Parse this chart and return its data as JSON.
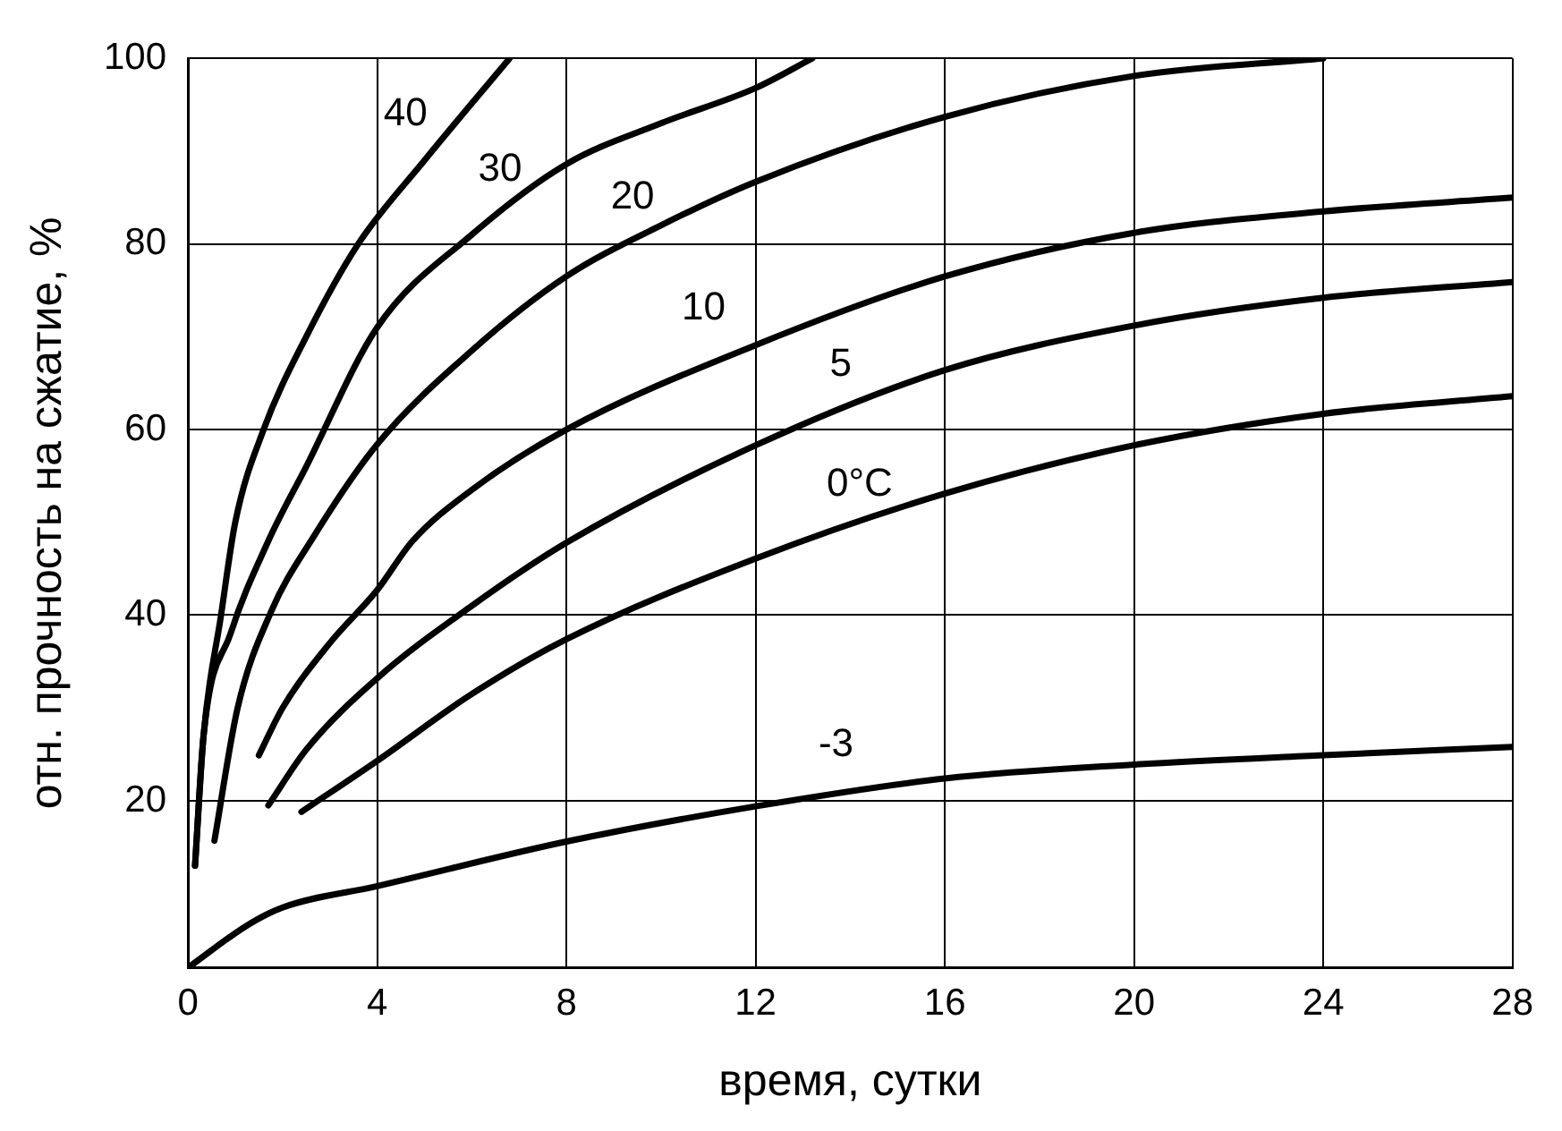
{
  "chart_data": {
    "type": "line",
    "xlabel": "время, сутки",
    "ylabel": "отн. прочность на сжатие, %",
    "xlim": [
      0,
      28
    ],
    "xticks": [
      0,
      4,
      8,
      12,
      16,
      20,
      24,
      28
    ],
    "ylim": [
      2,
      100
    ],
    "yticks": [
      20,
      40,
      60,
      80,
      100
    ],
    "grid": true,
    "legend": false,
    "marker": "none",
    "line_style": "solid",
    "series": [
      {
        "name": "40",
        "color": "#000000",
        "x": [
          0.15,
          0.33,
          0.7,
          1.0,
          1.6,
          2.5,
          3.6,
          5,
          6.8
        ],
        "values": [
          13,
          27,
          40,
          50,
          60,
          70,
          80,
          89,
          100
        ]
      },
      {
        "name": "30",
        "color": "#000000",
        "x": [
          0.15,
          0.33,
          0.9,
          1.7,
          2.5,
          4,
          6,
          8,
          10,
          12,
          13.2
        ],
        "values": [
          13,
          27,
          38,
          48,
          56,
          71,
          81,
          88.6,
          93,
          96.8,
          100
        ]
      },
      {
        "name": "20",
        "color": "#000000",
        "x": [
          0.56,
          1.05,
          1.76,
          2.65,
          4,
          6,
          8,
          10,
          12,
          16,
          20,
          24
        ],
        "values": [
          15.7,
          30,
          40.4,
          48.4,
          58.4,
          68.5,
          76.5,
          82,
          86.7,
          93.7,
          98.1,
          100
        ]
      },
      {
        "name": "10",
        "color": "#000000",
        "x": [
          1.5,
          2,
          3,
          4,
          4.75,
          6,
          8,
          12,
          16,
          20,
          24,
          28
        ],
        "values": [
          24.9,
          30,
          37,
          42.7,
          48,
          53.5,
          60,
          69.1,
          76.5,
          81.2,
          83.5,
          85
        ]
      },
      {
        "name": "5",
        "color": "#000000",
        "x": [
          1.7,
          2.5,
          4,
          6,
          8,
          12,
          16,
          20,
          24,
          28
        ],
        "values": [
          19.5,
          25.5,
          33.2,
          41,
          47.8,
          58.3,
          66.4,
          71.2,
          74.2,
          75.9
        ]
      },
      {
        "name": "0°C",
        "color": "#000000",
        "x": [
          2.4,
          4,
          6,
          8,
          12,
          16,
          20,
          24,
          28
        ],
        "values": [
          18.8,
          24.3,
          31.5,
          37.4,
          46.1,
          53.1,
          58.3,
          61.7,
          63.6
        ]
      },
      {
        "name": "-3",
        "color": "#000000",
        "x": [
          0,
          1.26,
          2,
          4,
          8,
          12,
          16,
          20,
          24,
          28
        ],
        "values": [
          2,
          6.6,
          8.5,
          10.8,
          15.6,
          19.4,
          22.4,
          23.9,
          24.9,
          25.8
        ]
      }
    ]
  }
}
